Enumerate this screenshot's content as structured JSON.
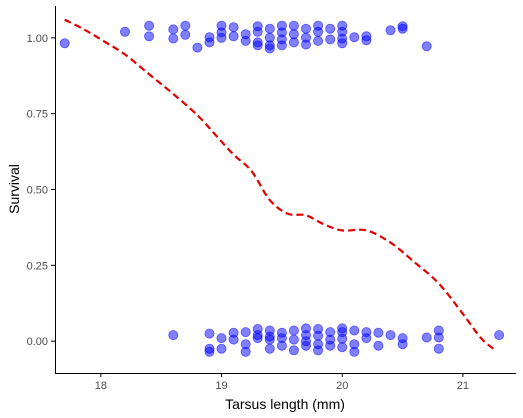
{
  "chart_data": {
    "type": "scatter",
    "title": "",
    "xlabel": "Tarsus length (mm)",
    "ylabel": "Survival",
    "xlim": [
      17.62,
      21.44
    ],
    "ylim": [
      -0.105,
      1.105
    ],
    "grid": false,
    "x_ticks": [
      {
        "value": 18,
        "label": "18"
      },
      {
        "value": 19,
        "label": "19"
      },
      {
        "value": 20,
        "label": "20"
      },
      {
        "value": 21,
        "label": "21"
      }
    ],
    "y_ticks": [
      {
        "value": 0.0,
        "label": "0.00"
      },
      {
        "value": 0.25,
        "label": "0.25"
      },
      {
        "value": 0.5,
        "label": "0.50"
      },
      {
        "value": 0.75,
        "label": "0.75"
      },
      {
        "value": 1.0,
        "label": "1.00"
      }
    ],
    "colors": {
      "points": "#0000ff",
      "curve": "#e00000",
      "axis": "#000000",
      "tick_label": "#4d4d4d"
    },
    "series": [
      {
        "type": "scatter",
        "points": [
          {
            "x": 17.7,
            "y": 0.982
          },
          {
            "x": 18.2,
            "y": 1.02
          },
          {
            "x": 18.4,
            "y": 1.04
          },
          {
            "x": 18.4,
            "y": 1.005
          },
          {
            "x": 18.6,
            "y": 1.028
          },
          {
            "x": 18.6,
            "y": 0.998
          },
          {
            "x": 18.7,
            "y": 1.04
          },
          {
            "x": 18.7,
            "y": 1.01
          },
          {
            "x": 18.8,
            "y": 0.968
          },
          {
            "x": 18.9,
            "y": 1.002
          },
          {
            "x": 18.9,
            "y": 0.985
          },
          {
            "x": 19.0,
            "y": 1.04
          },
          {
            "x": 19.0,
            "y": 1.018
          },
          {
            "x": 19.0,
            "y": 1.0
          },
          {
            "x": 19.1,
            "y": 1.035
          },
          {
            "x": 19.1,
            "y": 1.005
          },
          {
            "x": 19.2,
            "y": 1.012
          },
          {
            "x": 19.2,
            "y": 0.99
          },
          {
            "x": 19.3,
            "y": 1.038
          },
          {
            "x": 19.3,
            "y": 1.02
          },
          {
            "x": 19.3,
            "y": 0.985
          },
          {
            "x": 19.3,
            "y": 0.975
          },
          {
            "x": 19.4,
            "y": 1.03
          },
          {
            "x": 19.4,
            "y": 1.0
          },
          {
            "x": 19.4,
            "y": 0.975
          },
          {
            "x": 19.4,
            "y": 0.965
          },
          {
            "x": 19.5,
            "y": 1.04
          },
          {
            "x": 19.5,
            "y": 1.018
          },
          {
            "x": 19.5,
            "y": 0.995
          },
          {
            "x": 19.5,
            "y": 0.975
          },
          {
            "x": 19.6,
            "y": 1.04
          },
          {
            "x": 19.6,
            "y": 1.012
          },
          {
            "x": 19.6,
            "y": 0.985
          },
          {
            "x": 19.7,
            "y": 1.03
          },
          {
            "x": 19.7,
            "y": 1.0
          },
          {
            "x": 19.7,
            "y": 0.978
          },
          {
            "x": 19.8,
            "y": 1.04
          },
          {
            "x": 19.8,
            "y": 1.02
          },
          {
            "x": 19.8,
            "y": 0.99
          },
          {
            "x": 19.9,
            "y": 1.03
          },
          {
            "x": 19.9,
            "y": 0.995
          },
          {
            "x": 20.0,
            "y": 1.04
          },
          {
            "x": 20.0,
            "y": 1.02
          },
          {
            "x": 20.0,
            "y": 0.998
          },
          {
            "x": 20.0,
            "y": 0.982
          },
          {
            "x": 20.1,
            "y": 1.002
          },
          {
            "x": 20.2,
            "y": 1.005
          },
          {
            "x": 20.2,
            "y": 0.992
          },
          {
            "x": 20.4,
            "y": 1.025
          },
          {
            "x": 20.5,
            "y": 1.038
          },
          {
            "x": 20.5,
            "y": 1.03
          },
          {
            "x": 20.7,
            "y": 0.972
          },
          {
            "x": 18.6,
            "y": 0.02
          },
          {
            "x": 18.9,
            "y": 0.025
          },
          {
            "x": 18.9,
            "y": -0.025
          },
          {
            "x": 18.9,
            "y": -0.035
          },
          {
            "x": 19.0,
            "y": 0.01
          },
          {
            "x": 19.0,
            "y": -0.025
          },
          {
            "x": 19.1,
            "y": 0.028
          },
          {
            "x": 19.1,
            "y": 0.005
          },
          {
            "x": 19.2,
            "y": 0.03
          },
          {
            "x": 19.2,
            "y": -0.01
          },
          {
            "x": 19.2,
            "y": -0.035
          },
          {
            "x": 19.3,
            "y": 0.04
          },
          {
            "x": 19.3,
            "y": 0.02
          },
          {
            "x": 19.3,
            "y": 0.01
          },
          {
            "x": 19.4,
            "y": 0.035
          },
          {
            "x": 19.4,
            "y": 0.015
          },
          {
            "x": 19.4,
            "y": 0.005
          },
          {
            "x": 19.4,
            "y": -0.025
          },
          {
            "x": 19.5,
            "y": 0.028
          },
          {
            "x": 19.5,
            "y": 0.01
          },
          {
            "x": 19.5,
            "y": -0.015
          },
          {
            "x": 19.6,
            "y": 0.035
          },
          {
            "x": 19.6,
            "y": 0.005
          },
          {
            "x": 19.6,
            "y": -0.03
          },
          {
            "x": 19.7,
            "y": 0.042
          },
          {
            "x": 19.7,
            "y": 0.02
          },
          {
            "x": 19.7,
            "y": 0.0
          },
          {
            "x": 19.7,
            "y": -0.015
          },
          {
            "x": 19.8,
            "y": 0.04
          },
          {
            "x": 19.8,
            "y": 0.018
          },
          {
            "x": 19.8,
            "y": -0.01
          },
          {
            "x": 19.8,
            "y": -0.03
          },
          {
            "x": 19.9,
            "y": 0.03
          },
          {
            "x": 19.9,
            "y": 0.005
          },
          {
            "x": 19.9,
            "y": -0.015
          },
          {
            "x": 20.0,
            "y": 0.042
          },
          {
            "x": 20.0,
            "y": 0.03
          },
          {
            "x": 20.0,
            "y": 0.008
          },
          {
            "x": 20.0,
            "y": -0.02
          },
          {
            "x": 20.1,
            "y": 0.035
          },
          {
            "x": 20.1,
            "y": -0.01
          },
          {
            "x": 20.1,
            "y": -0.035
          },
          {
            "x": 20.2,
            "y": 0.03
          },
          {
            "x": 20.2,
            "y": 0.01
          },
          {
            "x": 20.3,
            "y": 0.028
          },
          {
            "x": 20.3,
            "y": -0.015
          },
          {
            "x": 20.4,
            "y": 0.02
          },
          {
            "x": 20.5,
            "y": 0.01
          },
          {
            "x": 20.5,
            "y": -0.01
          },
          {
            "x": 20.7,
            "y": 0.012
          },
          {
            "x": 20.8,
            "y": 0.035
          },
          {
            "x": 20.8,
            "y": 0.012
          },
          {
            "x": 20.8,
            "y": -0.025
          },
          {
            "x": 21.3,
            "y": 0.02
          }
        ]
      },
      {
        "type": "line",
        "style": "dashed",
        "x": [
          17.7,
          17.85,
          18.0,
          18.2,
          18.4,
          18.6,
          18.8,
          18.95,
          19.1,
          19.25,
          19.4,
          19.55,
          19.7,
          19.85,
          20.0,
          20.2,
          20.4,
          20.6,
          20.8,
          21.0,
          21.15,
          21.27
        ],
        "y": [
          1.06,
          1.03,
          0.995,
          0.945,
          0.88,
          0.815,
          0.745,
          0.68,
          0.615,
          0.56,
          0.465,
          0.42,
          0.415,
          0.385,
          0.365,
          0.365,
          0.325,
          0.26,
          0.19,
          0.09,
          0.01,
          -0.03
        ]
      }
    ]
  }
}
